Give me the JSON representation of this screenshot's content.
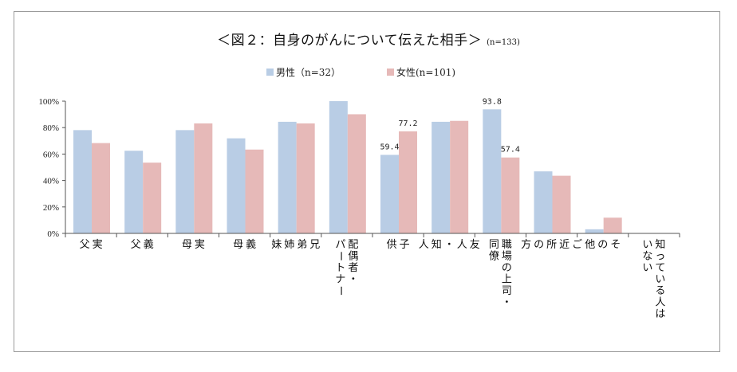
{
  "chart_data": {
    "type": "bar",
    "title": "＜図２：自身のがんについて伝えた相手＞",
    "subtitle": "(n=133)",
    "categories": [
      "実\n父",
      "義\n父",
      "実\n母",
      "義\n母",
      "兄\n弟\n姉\n妹",
      "配偶者・\nパートナー",
      "子\n供",
      "友\n人\n・\n知\n人",
      "職場の上司・\n同僚",
      "ご\n近\n所\nの\n方",
      "そ\nの\n他",
      "知っている人は\nいない"
    ],
    "series": [
      {
        "name": "男性（n=32）",
        "color": "#b9cde5",
        "values": [
          78.1,
          62.5,
          78.1,
          71.9,
          84.4,
          100.0,
          59.4,
          84.4,
          93.8,
          46.9,
          3.1,
          0
        ]
      },
      {
        "name": "女性(n=101)",
        "color": "#e6b9b8",
        "values": [
          68.3,
          53.5,
          83.2,
          63.4,
          83.2,
          90.1,
          77.2,
          85.1,
          57.4,
          43.6,
          11.9,
          0
        ]
      }
    ],
    "data_labels": [
      {
        "series": 0,
        "index": 6,
        "text": "59.4"
      },
      {
        "series": 1,
        "index": 6,
        "text": "77.2"
      },
      {
        "series": 0,
        "index": 8,
        "text": "93.8"
      },
      {
        "series": 1,
        "index": 8,
        "text": "57.4"
      }
    ],
    "yticks": [
      "0%",
      "20%",
      "40%",
      "60%",
      "80%",
      "100%"
    ],
    "ylim": [
      0,
      100
    ],
    "legend_position": "top-center",
    "grid": false
  }
}
